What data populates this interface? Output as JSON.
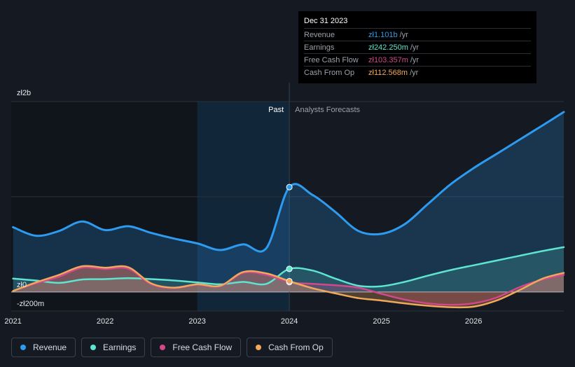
{
  "tooltip": {
    "date": "Dec 31 2023",
    "rows": [
      {
        "label": "Revenue",
        "value": "zł1.101b",
        "unit": "/yr",
        "color": "#2d9bf0"
      },
      {
        "label": "Earnings",
        "value": "zł242.250m",
        "unit": "/yr",
        "color": "#5ee5d0"
      },
      {
        "label": "Free Cash Flow",
        "value": "zł103.357m",
        "unit": "/yr",
        "color": "#d1488b"
      },
      {
        "label": "Cash From Op",
        "value": "zł112.568m",
        "unit": "/yr",
        "color": "#f0a85a"
      }
    ]
  },
  "legend": [
    {
      "label": "Revenue",
      "color": "#2d9bf0"
    },
    {
      "label": "Earnings",
      "color": "#5ee5d0"
    },
    {
      "label": "Free Cash Flow",
      "color": "#d1488b"
    },
    {
      "label": "Cash From Op",
      "color": "#f0a85a"
    }
  ],
  "chart_data": {
    "type": "line",
    "title": "",
    "xlabel": "",
    "ylabel": "",
    "x_ticks": [
      "2021",
      "2022",
      "2023",
      "2024",
      "2025",
      "2026"
    ],
    "y_tick_labels": [
      {
        "label": "zł2b",
        "value": 2000
      },
      {
        "label": "zł0",
        "value": 0
      },
      {
        "label": "-zł200m",
        "value": -200
      }
    ],
    "ylim": [
      -200,
      2000
    ],
    "xlim": [
      2020.98,
      2026.98
    ],
    "units": "zł millions",
    "past_label": "Past",
    "forecast_label": "Analysts Forecasts",
    "past_boundary": 2024.0,
    "highlight_start": 2023.0,
    "series": [
      {
        "name": "Revenue",
        "color": "#2d9bf0",
        "fill": true,
        "points": [
          [
            2021.0,
            680
          ],
          [
            2021.25,
            590
          ],
          [
            2021.5,
            640
          ],
          [
            2021.75,
            740
          ],
          [
            2022.0,
            650
          ],
          [
            2022.25,
            690
          ],
          [
            2022.5,
            620
          ],
          [
            2022.75,
            560
          ],
          [
            2023.0,
            510
          ],
          [
            2023.25,
            440
          ],
          [
            2023.5,
            500
          ],
          [
            2023.75,
            460
          ],
          [
            2024.0,
            1101
          ],
          [
            2024.25,
            1020
          ],
          [
            2024.5,
            840
          ],
          [
            2024.75,
            640
          ],
          [
            2025.0,
            610
          ],
          [
            2025.25,
            710
          ],
          [
            2025.5,
            920
          ],
          [
            2025.75,
            1130
          ],
          [
            2026.0,
            1300
          ],
          [
            2026.25,
            1450
          ],
          [
            2026.5,
            1600
          ],
          [
            2026.75,
            1750
          ],
          [
            2026.98,
            1890
          ]
        ]
      },
      {
        "name": "Earnings",
        "color": "#5ee5d0",
        "fill": true,
        "points": [
          [
            2021.0,
            140
          ],
          [
            2021.25,
            120
          ],
          [
            2021.5,
            95
          ],
          [
            2021.75,
            130
          ],
          [
            2022.0,
            135
          ],
          [
            2022.25,
            145
          ],
          [
            2022.5,
            135
          ],
          [
            2022.75,
            120
          ],
          [
            2023.0,
            100
          ],
          [
            2023.25,
            80
          ],
          [
            2023.5,
            105
          ],
          [
            2023.75,
            85
          ],
          [
            2024.0,
            242
          ],
          [
            2024.25,
            225
          ],
          [
            2024.5,
            140
          ],
          [
            2024.75,
            65
          ],
          [
            2025.0,
            60
          ],
          [
            2025.25,
            105
          ],
          [
            2025.5,
            170
          ],
          [
            2025.75,
            230
          ],
          [
            2026.0,
            280
          ],
          [
            2026.25,
            330
          ],
          [
            2026.5,
            380
          ],
          [
            2026.75,
            430
          ],
          [
            2026.98,
            470
          ]
        ]
      },
      {
        "name": "Free Cash Flow",
        "color": "#d1488b",
        "fill": true,
        "points": [
          [
            2021.0,
            10
          ],
          [
            2021.25,
            90
          ],
          [
            2021.5,
            160
          ],
          [
            2021.75,
            255
          ],
          [
            2022.0,
            240
          ],
          [
            2022.25,
            245
          ],
          [
            2022.5,
            80
          ],
          [
            2022.75,
            40
          ],
          [
            2023.0,
            75
          ],
          [
            2023.25,
            60
          ],
          [
            2023.5,
            200
          ],
          [
            2023.75,
            180
          ],
          [
            2024.0,
            103
          ],
          [
            2024.25,
            85
          ],
          [
            2024.5,
            70
          ],
          [
            2024.75,
            45
          ],
          [
            2025.0,
            -20
          ],
          [
            2025.25,
            -80
          ],
          [
            2025.5,
            -120
          ],
          [
            2025.75,
            -135
          ],
          [
            2026.0,
            -120
          ],
          [
            2026.25,
            -60
          ],
          [
            2026.5,
            50
          ],
          [
            2026.75,
            130
          ],
          [
            2026.98,
            180
          ]
        ]
      },
      {
        "name": "Cash From Op",
        "color": "#f0a85a",
        "fill": true,
        "points": [
          [
            2021.0,
            10
          ],
          [
            2021.25,
            100
          ],
          [
            2021.5,
            180
          ],
          [
            2021.75,
            270
          ],
          [
            2022.0,
            255
          ],
          [
            2022.25,
            260
          ],
          [
            2022.5,
            90
          ],
          [
            2022.75,
            45
          ],
          [
            2023.0,
            80
          ],
          [
            2023.25,
            65
          ],
          [
            2023.5,
            210
          ],
          [
            2023.75,
            195
          ],
          [
            2024.0,
            113
          ],
          [
            2024.25,
            40
          ],
          [
            2024.5,
            -15
          ],
          [
            2024.75,
            -65
          ],
          [
            2025.0,
            -90
          ],
          [
            2025.25,
            -120
          ],
          [
            2025.5,
            -145
          ],
          [
            2025.75,
            -160
          ],
          [
            2026.0,
            -155
          ],
          [
            2026.25,
            -90
          ],
          [
            2026.5,
            20
          ],
          [
            2026.75,
            140
          ],
          [
            2026.98,
            200
          ]
        ]
      }
    ]
  }
}
